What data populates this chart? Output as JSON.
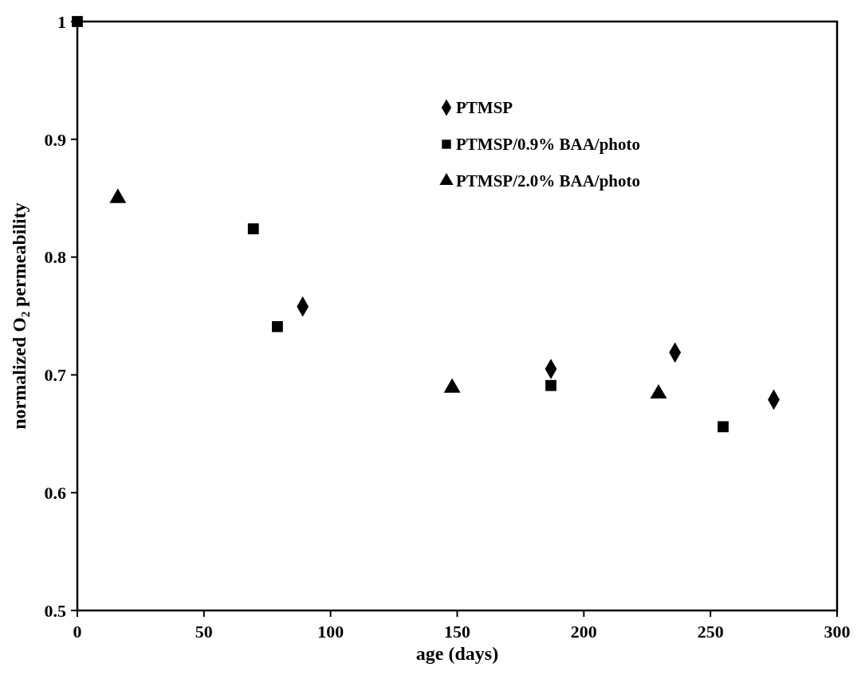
{
  "chart_data": {
    "type": "scatter",
    "xlabel": "age (days)",
    "ylabel": "normalized O₂ permeability",
    "xlim": [
      0,
      300
    ],
    "xticks": [
      0,
      50,
      100,
      150,
      200,
      250,
      300
    ],
    "ylim": [
      0.5,
      1
    ],
    "yticks": [
      0.5,
      0.6,
      0.7,
      0.8,
      0.9,
      1
    ],
    "grid": false,
    "legend": "top right",
    "series": [
      {
        "name": "PTMSP",
        "color": "#000000",
        "marker": "diamond",
        "x": [
          89,
          187,
          236,
          275
        ],
        "values": [
          0.758,
          0.705,
          0.719,
          0.679
        ]
      },
      {
        "name": "PTMSP/0.9% BAA/photo",
        "color": "#000000",
        "marker": "square",
        "x": [
          0,
          69.5,
          79,
          187,
          255
        ],
        "values": [
          1,
          0.824,
          0.741,
          0.691,
          0.656
        ]
      },
      {
        "name": "PTMSP/2.0% BAA/photo",
        "color": "#000000",
        "marker": "triangle",
        "x": [
          16,
          148,
          229.5
        ],
        "values": [
          0.85,
          0.689,
          0.684
        ]
      }
    ]
  }
}
